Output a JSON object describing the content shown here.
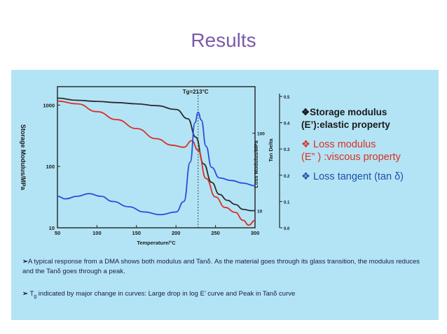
{
  "page": {
    "title": "Results"
  },
  "chart_data": {
    "type": "line",
    "xlabel": "Temperature/°C",
    "ylabel_left": "Storage Modulus/MPa",
    "ylabel_right1": "Loss Modulus/MPa",
    "ylabel_right2": "Tan Delta",
    "annotation": "Tg=213°C",
    "annotation_x": 228,
    "xlim": [
      50,
      300
    ],
    "x_ticks": [
      "50",
      "100",
      "150",
      "200",
      "250",
      "300"
    ],
    "y_left_scale": "log",
    "y_left_lim": [
      10,
      2000
    ],
    "y_left_ticks": [
      "1000",
      "100",
      "10"
    ],
    "y_right1_scale": "log",
    "y_right1_lim": [
      6,
      400
    ],
    "y_right1_ticks": [
      "100",
      "10"
    ],
    "y_right2_lim": [
      0.0,
      0.5
    ],
    "y_right2_ticks": [
      "0.5",
      "0.4",
      "0.3",
      "0.2",
      "0.1",
      "0.0"
    ],
    "series": [
      {
        "axis": "left",
        "color": "#2b2b2b",
        "x": [
          50,
          75,
          100,
          125,
          150,
          175,
          200,
          215,
          225,
          235,
          245,
          255,
          265,
          275,
          285,
          295,
          300
        ],
        "values": [
          1300,
          1200,
          1150,
          1100,
          1050,
          980,
          850,
          600,
          300,
          110,
          55,
          35,
          28,
          24,
          20,
          19,
          19
        ]
      },
      {
        "axis": "right1",
        "color": "#d93025",
        "x": [
          50,
          75,
          100,
          125,
          150,
          175,
          195,
          210,
          220,
          228,
          238,
          250,
          262,
          275,
          285,
          292,
          300
        ],
        "values": [
          260,
          240,
          190,
          150,
          115,
          85,
          70,
          66,
          80,
          60,
          26,
          15,
          11,
          9.5,
          7.5,
          6.5,
          7.5
        ]
      },
      {
        "axis": "right2",
        "color": "#2a4fd8",
        "x": [
          50,
          60,
          75,
          90,
          105,
          120,
          140,
          160,
          180,
          200,
          210,
          218,
          224,
          228,
          232,
          238,
          245,
          255,
          270,
          285,
          300
        ],
        "values": [
          0.12,
          0.11,
          0.12,
          0.13,
          0.12,
          0.1,
          0.08,
          0.06,
          0.05,
          0.06,
          0.1,
          0.25,
          0.4,
          0.44,
          0.41,
          0.31,
          0.23,
          0.19,
          0.18,
          0.17,
          0.16
        ]
      }
    ]
  },
  "bullets": {
    "storage": {
      "symbol": "❖",
      "line1": "Storage modulus",
      "line2": "(E’):elastic property"
    },
    "loss": {
      "symbol": "❖",
      "line1": "Loss modulus",
      "line2": "(E” ) :viscous property"
    },
    "tan": {
      "symbol": "❖",
      "text": "Loss tangent (tan δ)"
    }
  },
  "notes": {
    "n1_arrow": "➢",
    "n1_text": "A typical response from a DMA shows both modulus and Tanδ. As the material goes through its glass transition, the modulus reduces and the Tanδ goes through a peak.",
    "n2_arrow": "➢",
    "n2_prefix": "T",
    "n2_sub": "g",
    "n2_text": " indicated by major change in curves: Large drop in log E’ curve and Peak in Tanδ  curve"
  }
}
